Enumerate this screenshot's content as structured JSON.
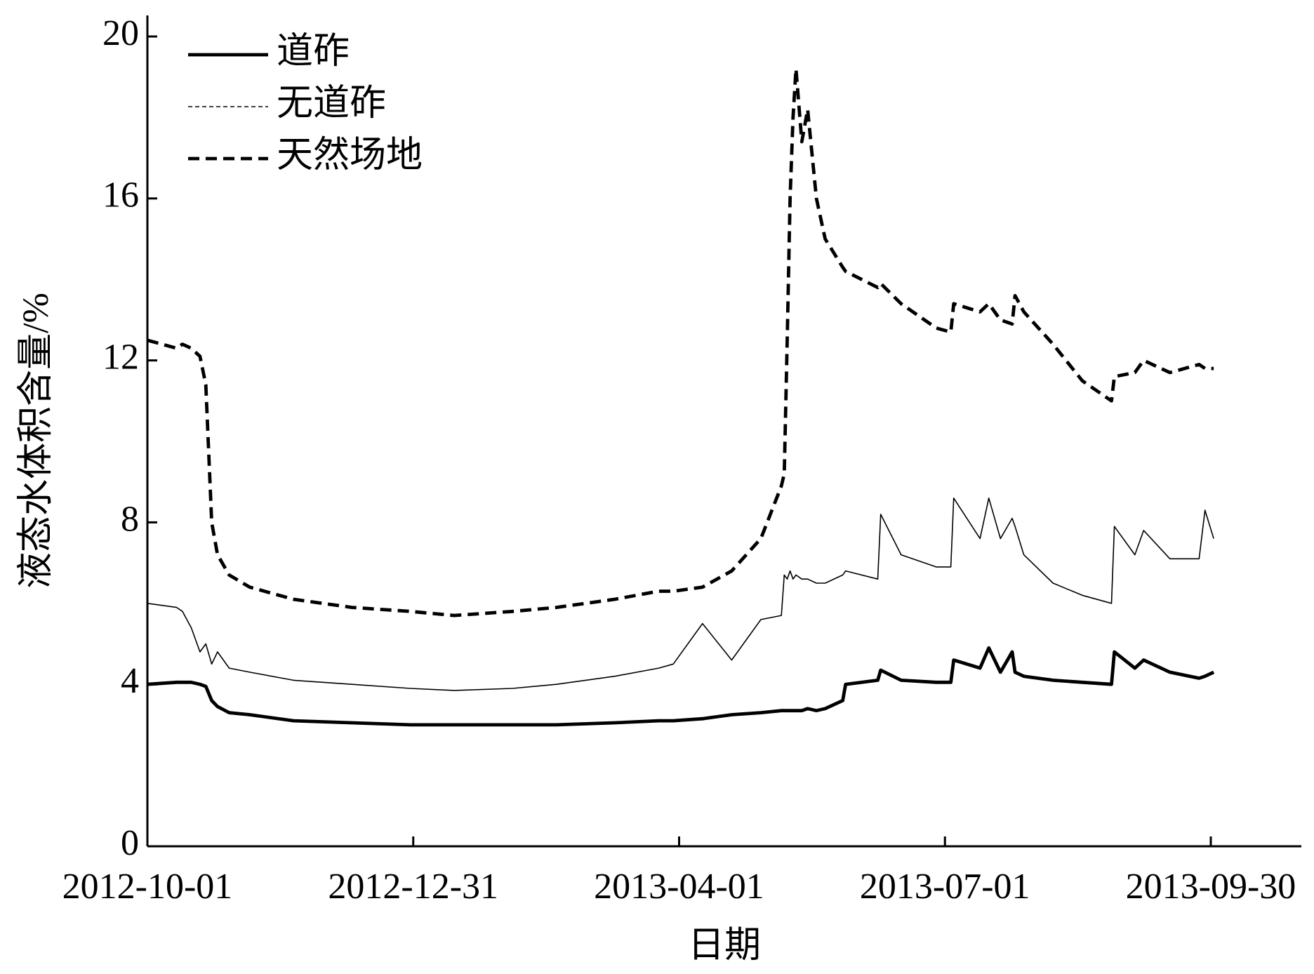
{
  "chart_data": {
    "type": "line",
    "xlabel": "日期",
    "ylabel": "液态水体积含量/%",
    "x": [
      "2012-10-01",
      "2012-10-11",
      "2012-10-13",
      "2012-10-16",
      "2012-10-19",
      "2012-10-21",
      "2012-10-23",
      "2012-10-25",
      "2012-10-29",
      "2012-11-05",
      "2012-11-20",
      "2012-12-10",
      "2012-12-30",
      "2013-01-14",
      "2013-02-03",
      "2013-02-18",
      "2013-03-10",
      "2013-03-25",
      "2013-03-30",
      "2013-04-09",
      "2013-04-19",
      "2013-04-29",
      "2013-05-06",
      "2013-05-07",
      "2013-05-08",
      "2013-05-09",
      "2013-05-10",
      "2013-05-11",
      "2013-05-13",
      "2013-05-15",
      "2013-05-18",
      "2013-05-21",
      "2013-05-27",
      "2013-05-28",
      "2013-06-08",
      "2013-06-09",
      "2013-06-16",
      "2013-06-28",
      "2013-07-03",
      "2013-07-04",
      "2013-07-13",
      "2013-07-16",
      "2013-07-20",
      "2013-07-24",
      "2013-07-25",
      "2013-07-28",
      "2013-08-07",
      "2013-08-17",
      "2013-08-27",
      "2013-08-28",
      "2013-09-04",
      "2013-09-07",
      "2013-09-16",
      "2013-09-26",
      "2013-09-28",
      "2013-10-01"
    ],
    "series": [
      {
        "name": "道砟",
        "color": "#000000",
        "linestyle": "solid",
        "linewidth": 3,
        "values": [
          4.0,
          4.05,
          4.05,
          4.05,
          4.0,
          3.95,
          3.6,
          3.45,
          3.3,
          3.25,
          3.1,
          3.05,
          3.0,
          3.0,
          3.0,
          3.0,
          3.05,
          3.1,
          3.1,
          3.15,
          3.25,
          3.3,
          3.35,
          3.35,
          3.35,
          3.35,
          3.35,
          3.35,
          3.35,
          3.4,
          3.35,
          3.4,
          3.6,
          4.0,
          4.1,
          4.35,
          4.1,
          4.05,
          4.05,
          4.6,
          4.4,
          4.9,
          4.3,
          4.8,
          4.3,
          4.2,
          4.1,
          4.05,
          4.0,
          4.8,
          4.4,
          4.6,
          4.3,
          4.15,
          4.2,
          4.3
        ]
      },
      {
        "name": "无道砟",
        "color": "#000000",
        "linestyle": "solid",
        "linewidth": 1,
        "values": [
          6.0,
          5.9,
          5.8,
          5.4,
          4.8,
          5.0,
          4.5,
          4.8,
          4.4,
          4.3,
          4.1,
          4.0,
          3.9,
          3.85,
          3.9,
          4.0,
          4.2,
          4.4,
          4.5,
          5.5,
          4.6,
          5.6,
          5.7,
          6.7,
          6.6,
          6.8,
          6.6,
          6.7,
          6.6,
          6.6,
          6.5,
          6.5,
          6.7,
          6.8,
          6.6,
          8.2,
          7.2,
          6.9,
          6.9,
          8.6,
          7.6,
          8.6,
          7.6,
          8.1,
          7.9,
          7.2,
          6.5,
          6.2,
          6.0,
          7.9,
          7.2,
          7.8,
          7.1,
          7.1,
          8.3,
          7.6
        ]
      },
      {
        "name": "天然场地",
        "color": "#000000",
        "linestyle": "dashed",
        "linewidth": 3,
        "values": [
          12.5,
          12.3,
          12.4,
          12.3,
          12.1,
          11.4,
          8.0,
          7.2,
          6.7,
          6.4,
          6.1,
          5.9,
          5.8,
          5.7,
          5.8,
          5.9,
          6.1,
          6.3,
          6.3,
          6.4,
          6.8,
          7.6,
          8.9,
          9.2,
          12.5,
          16.0,
          18.0,
          19.2,
          17.4,
          18.2,
          16.0,
          15.0,
          14.3,
          14.2,
          13.8,
          13.9,
          13.4,
          12.8,
          12.7,
          13.4,
          13.2,
          13.4,
          13.0,
          12.9,
          13.6,
          13.2,
          12.4,
          11.5,
          11.0,
          11.6,
          11.7,
          12.0,
          11.7,
          11.9,
          11.8,
          11.8
        ]
      }
    ],
    "xlim": [
      "2012-10-01",
      "2013-10-31"
    ],
    "xticks": [
      "2012-10-01",
      "2012-12-31",
      "2013-04-01",
      "2013-07-01",
      "2013-09-30"
    ],
    "ylim": [
      0,
      20
    ],
    "yticks": [
      0,
      4,
      8,
      12,
      16,
      20
    ],
    "legend": "upper left",
    "grid": false
  }
}
